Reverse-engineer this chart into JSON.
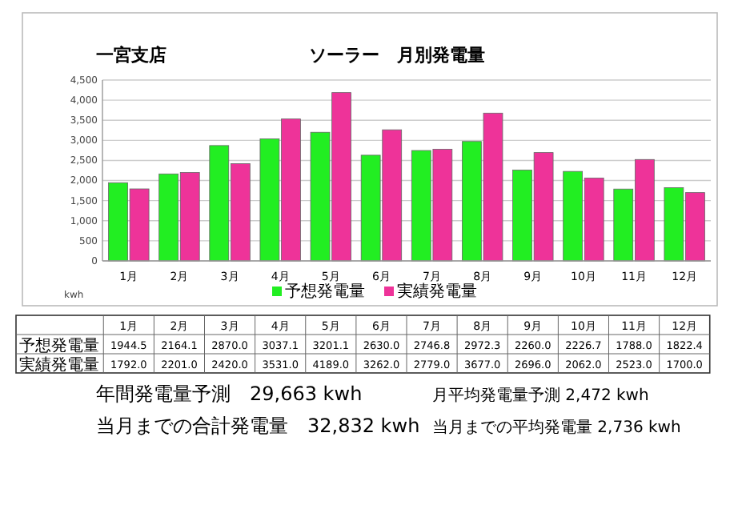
{
  "chart_data": {
    "type": "bar",
    "title": "ソーラー　月別発電量",
    "subtitle": "一宮支店",
    "ylabel": "kwh",
    "categories": [
      "1月",
      "2月",
      "3月",
      "4月",
      "5月",
      "6月",
      "7月",
      "8月",
      "9月",
      "10月",
      "11月",
      "12月"
    ],
    "series": [
      {
        "name": "予想発電量",
        "color": "#22ee22",
        "values": [
          1944.5,
          2164.1,
          2870.0,
          3037.1,
          3201.1,
          2630.0,
          2746.8,
          2972.3,
          2260.0,
          2226.7,
          1788.0,
          1822.4
        ],
        "value_labels": [
          "1944.5",
          "2164.1",
          "2870.0",
          "3037.1",
          "3201.1",
          "2630.0",
          "2746.8",
          "2972.3",
          "2260.0",
          "2226.7",
          "1788.0",
          "1822.4"
        ]
      },
      {
        "name": "実績発電量",
        "color": "#ee3399",
        "values": [
          1792.0,
          2201.0,
          2420.0,
          3531.0,
          4189.0,
          3262.0,
          2779.0,
          3677.0,
          2696.0,
          2062.0,
          2523.0,
          1700.0
        ],
        "value_labels": [
          "1792.0",
          "2201.0",
          "2420.0",
          "3531.0",
          "4189.0",
          "3262.0",
          "2779.0",
          "3677.0",
          "2696.0",
          "2062.0",
          "2523.0",
          "1700.0"
        ]
      }
    ],
    "ylim": [
      0,
      4500
    ],
    "yticks": [
      0,
      500,
      {
        "value": 1000,
        "label": "1,000"
      },
      {
        "value": 1500,
        "label": "1,500"
      },
      {
        "value": 2000,
        "label": "2,000"
      },
      {
        "value": 2500,
        "label": "2,500"
      },
      {
        "value": 3000,
        "label": "3,000"
      },
      {
        "value": 3500,
        "label": "3,500"
      },
      {
        "value": 4000,
        "label": "4,000"
      },
      {
        "value": 4500,
        "label": "4,500"
      }
    ],
    "grid": "y",
    "legend": "bottom",
    "annotations": [
      "年間発電量予測　29,663 kwh",
      "月平均発電量予測 2,472 kwh",
      "当月までの合計発電量　32,832 kwh",
      "当月までの平均発電量 2,736 kwh"
    ]
  }
}
